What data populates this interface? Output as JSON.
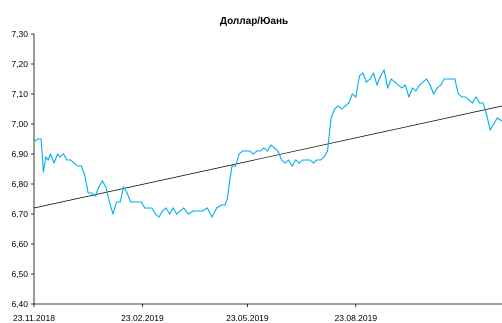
{
  "chart_data": {
    "type": "line",
    "title": "Доллар/Юань",
    "xlabel": "",
    "ylabel": "",
    "ylim": [
      6.4,
      7.3
    ],
    "y_ticks": [
      "6,40",
      "6,50",
      "6,60",
      "6,70",
      "6,80",
      "6,90",
      "7,00",
      "7,10",
      "7,20",
      "7,30"
    ],
    "x_range": [
      "2018-11-23",
      "2019-12-25"
    ],
    "x_ticks": [
      {
        "date": "2018-11-23",
        "label": "23.11.2018"
      },
      {
        "date": "2019-02-23",
        "label": "23.02.2019"
      },
      {
        "date": "2019-05-23",
        "label": "23.05.2019"
      },
      {
        "date": "2019-08-23",
        "label": "23.08.2019"
      }
    ],
    "grid": false,
    "colors": {
      "series": "#00b0f0",
      "trend": "#000000",
      "axis": "#000000"
    },
    "series": [
      {
        "x": [
          "2018-11-23",
          "2018-11-26",
          "2018-11-29",
          "2018-12-01",
          "2018-12-03",
          "2018-12-05",
          "2018-12-07",
          "2018-12-10",
          "2018-12-13",
          "2018-12-15",
          "2018-12-18",
          "2018-12-21",
          "2018-12-24",
          "2018-12-27",
          "2018-12-30",
          "2019-01-02",
          "2019-01-05",
          "2019-01-08",
          "2019-01-11",
          "2019-01-14",
          "2019-01-17",
          "2019-01-20",
          "2019-01-23",
          "2019-01-26",
          "2019-01-29",
          "2019-02-01",
          "2019-02-04",
          "2019-02-07",
          "2019-02-10",
          "2019-02-13",
          "2019-02-16",
          "2019-02-19",
          "2019-02-22",
          "2019-02-25",
          "2019-02-28",
          "2019-03-03",
          "2019-03-06",
          "2019-03-09",
          "2019-03-12",
          "2019-03-15",
          "2019-03-18",
          "2019-03-21",
          "2019-03-24",
          "2019-03-27",
          "2019-03-30",
          "2019-04-03",
          "2019-04-07",
          "2019-04-11",
          "2019-04-15",
          "2019-04-19",
          "2019-04-23",
          "2019-04-27",
          "2019-05-01",
          "2019-05-04",
          "2019-05-06",
          "2019-05-08",
          "2019-05-10",
          "2019-05-13",
          "2019-05-16",
          "2019-05-19",
          "2019-05-22",
          "2019-05-25",
          "2019-05-28",
          "2019-05-31",
          "2019-06-03",
          "2019-06-06",
          "2019-06-09",
          "2019-06-12",
          "2019-06-15",
          "2019-06-18",
          "2019-06-21",
          "2019-06-24",
          "2019-06-27",
          "2019-06-30",
          "2019-07-03",
          "2019-07-06",
          "2019-07-09",
          "2019-07-12",
          "2019-07-15",
          "2019-07-18",
          "2019-07-21",
          "2019-07-24",
          "2019-07-27",
          "2019-07-30",
          "2019-08-02",
          "2019-08-05",
          "2019-08-08",
          "2019-08-11",
          "2019-08-14",
          "2019-08-17",
          "2019-08-20",
          "2019-08-23",
          "2019-08-26",
          "2019-08-29",
          "2019-09-01",
          "2019-09-04",
          "2019-09-07",
          "2019-09-10",
          "2019-09-13",
          "2019-09-16",
          "2019-09-19",
          "2019-09-22",
          "2019-09-25",
          "2019-09-28",
          "2019-10-01",
          "2019-10-04",
          "2019-10-07",
          "2019-10-10",
          "2019-10-13",
          "2019-10-16",
          "2019-10-19",
          "2019-10-22",
          "2019-10-25",
          "2019-10-28",
          "2019-10-31",
          "2019-11-03",
          "2019-11-06",
          "2019-11-09",
          "2019-11-12",
          "2019-11-15",
          "2019-11-18",
          "2019-11-21",
          "2019-11-24",
          "2019-11-27",
          "2019-11-30",
          "2019-12-03",
          "2019-12-06",
          "2019-12-09",
          "2019-12-12",
          "2019-12-15",
          "2019-12-18",
          "2019-12-21",
          "2019-12-25"
        ],
        "values": [
          6.94,
          6.95,
          6.95,
          6.84,
          6.89,
          6.88,
          6.9,
          6.87,
          6.9,
          6.89,
          6.9,
          6.88,
          6.88,
          6.87,
          6.86,
          6.86,
          6.83,
          6.77,
          6.77,
          6.76,
          6.79,
          6.81,
          6.79,
          6.74,
          6.7,
          6.74,
          6.74,
          6.79,
          6.77,
          6.74,
          6.74,
          6.74,
          6.74,
          6.72,
          6.72,
          6.72,
          6.7,
          6.69,
          6.71,
          6.72,
          6.7,
          6.72,
          6.7,
          6.71,
          6.72,
          6.7,
          6.71,
          6.71,
          6.71,
          6.72,
          6.69,
          6.72,
          6.73,
          6.73,
          6.75,
          6.81,
          6.86,
          6.86,
          6.9,
          6.91,
          6.91,
          6.91,
          6.9,
          6.91,
          6.91,
          6.92,
          6.91,
          6.93,
          6.92,
          6.91,
          6.88,
          6.87,
          6.88,
          6.86,
          6.88,
          6.87,
          6.88,
          6.88,
          6.88,
          6.87,
          6.88,
          6.88,
          6.89,
          6.91,
          7.02,
          7.05,
          7.06,
          7.05,
          7.06,
          7.07,
          7.1,
          7.09,
          7.16,
          7.17,
          7.14,
          7.15,
          7.17,
          7.13,
          7.16,
          7.18,
          7.12,
          7.15,
          7.14,
          7.13,
          7.12,
          7.13,
          7.09,
          7.12,
          7.11,
          7.13,
          7.14,
          7.15,
          7.13,
          7.1,
          7.12,
          7.13,
          7.15,
          7.15,
          7.15,
          7.15,
          7.1,
          7.09,
          7.09,
          7.08,
          7.07,
          7.09,
          7.07,
          7.07,
          7.03,
          6.98,
          7.0,
          7.02,
          7.01
        ]
      }
    ],
    "trendline": {
      "start": [
        "2018-11-23",
        6.72
      ],
      "end": [
        "2019-12-25",
        7.06
      ]
    }
  }
}
